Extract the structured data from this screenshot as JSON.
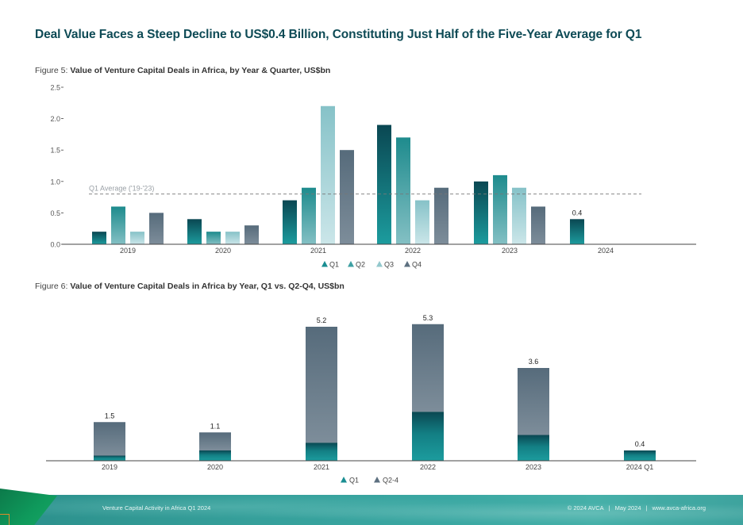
{
  "headline": "Deal Value Faces a Steep Decline to US$0.4 Billion, Constituting Just Half of the Five-Year Average for Q1",
  "footer": {
    "left": "Venture Capital Activity in Africa Q1 2024",
    "copyright": "© 2024 AVCA",
    "date": "May 2024",
    "website": "www.avca-africa.org",
    "separator": "|"
  },
  "colors": {
    "q1_top": "#0a4752",
    "q1_bottom": "#1c9c9e",
    "q2_top": "#1e8b8d",
    "q2_bottom": "#84c0c4",
    "q3_top": "#86c2c8",
    "q3_bottom": "#cbe6e9",
    "q4_top": "#566b7b",
    "q4_bottom": "#7d8d9a",
    "axis": "#444444",
    "avg_line": "#777777",
    "headline": "#0d4a55"
  },
  "chart_data": [
    {
      "type": "bar",
      "figure_prefix": "Figure 5:",
      "title": "Value of Venture Capital Deals in Africa, by Year & Quarter, US$bn",
      "xlabel": "",
      "ylabel": "",
      "categories": [
        "2019",
        "2020",
        "2021",
        "2022",
        "2023",
        "2024"
      ],
      "series": [
        {
          "name": "Q1",
          "values": [
            0.2,
            0.4,
            0.7,
            1.9,
            1.0,
            0.4
          ]
        },
        {
          "name": "Q2",
          "values": [
            0.6,
            0.2,
            0.9,
            1.7,
            1.1,
            null
          ]
        },
        {
          "name": "Q3",
          "values": [
            0.2,
            0.2,
            2.2,
            0.7,
            0.9,
            null
          ]
        },
        {
          "name": "Q4",
          "values": [
            0.5,
            0.3,
            1.5,
            0.9,
            0.6,
            null
          ]
        }
      ],
      "ylim": [
        0,
        2.5
      ],
      "yticks": [
        "0.0",
        "0.5",
        "1.0",
        "1.5",
        "2.0",
        "2.5"
      ],
      "ytick_values": [
        0,
        0.5,
        1.0,
        1.5,
        2.0,
        2.5
      ],
      "reference_line": {
        "label": "Q1 Average ('19-'23)",
        "value": 0.8
      },
      "data_labels": [
        {
          "category": "2024",
          "series": "Q1",
          "text": "0.4"
        }
      ],
      "legend": {
        "placement": "bottom-center",
        "entries": [
          "Q1",
          "Q2",
          "Q3",
          "Q4"
        ]
      },
      "grid": false
    },
    {
      "type": "bar",
      "stacked": true,
      "figure_prefix": "Figure 6:",
      "title": "Value of Venture Capital Deals in Africa by Year, Q1 vs. Q2-Q4, US$bn",
      "xlabel": "",
      "ylabel": "",
      "categories": [
        "2019",
        "2020",
        "2021",
        "2022",
        "2023",
        "2024 Q1"
      ],
      "series": [
        {
          "name": "Q1",
          "values": [
            0.2,
            0.4,
            0.7,
            1.9,
            1.0,
            0.4
          ]
        },
        {
          "name": "Q2-4",
          "values": [
            1.3,
            0.7,
            4.5,
            3.4,
            2.6,
            0
          ]
        }
      ],
      "totals": [
        "1.5",
        "1.1",
        "5.2",
        "5.3",
        "3.6",
        "0.4"
      ],
      "ylim": [
        0,
        5.3
      ],
      "legend": {
        "placement": "bottom-center",
        "entries": [
          "Q1",
          "Q2-4"
        ]
      },
      "grid": false
    }
  ]
}
